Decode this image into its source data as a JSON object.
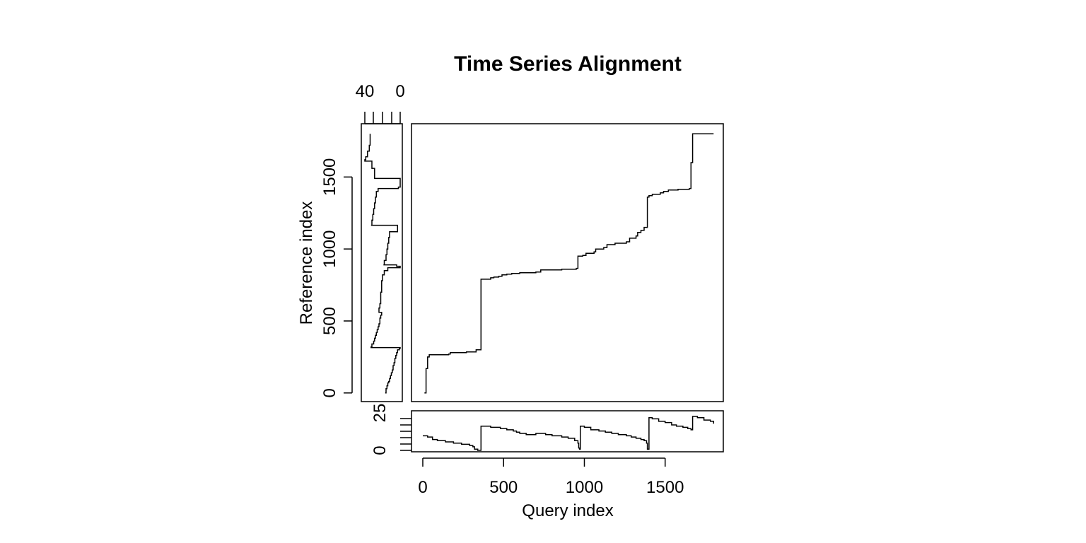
{
  "chart_data": {
    "type": "line",
    "title": "Time Series Alignment",
    "xlabel": "Query index",
    "ylabel": "Reference index",
    "xlim": [
      -70,
      1860
    ],
    "ylim": [
      -60,
      1870
    ],
    "xticks": [
      0,
      500,
      1000,
      1500
    ],
    "xtick_labels": [
      "0",
      "500",
      "1000",
      "1500"
    ],
    "yticks": [
      0,
      500,
      1000,
      1500
    ],
    "ytick_labels": [
      "0",
      "500",
      "1000",
      "1500"
    ],
    "grid": false,
    "series": [
      {
        "points": [
          [
            10,
            0
          ],
          [
            20,
            10
          ],
          [
            20,
            170
          ],
          [
            30,
            180
          ],
          [
            30,
            250
          ],
          [
            40,
            265
          ],
          [
            100,
            265
          ],
          [
            160,
            270
          ],
          [
            170,
            280
          ],
          [
            230,
            280
          ],
          [
            270,
            285
          ],
          [
            330,
            300
          ],
          [
            360,
            310
          ],
          [
            360,
            790
          ],
          [
            390,
            790
          ],
          [
            420,
            800
          ],
          [
            440,
            805
          ],
          [
            470,
            810
          ],
          [
            490,
            820
          ],
          [
            520,
            825
          ],
          [
            550,
            830
          ],
          [
            600,
            835
          ],
          [
            700,
            840
          ],
          [
            730,
            855
          ],
          [
            800,
            855
          ],
          [
            860,
            860
          ],
          [
            950,
            865
          ],
          [
            960,
            870
          ],
          [
            960,
            950
          ],
          [
            990,
            955
          ],
          [
            1010,
            970
          ],
          [
            1060,
            980
          ],
          [
            1070,
            1000
          ],
          [
            1120,
            1010
          ],
          [
            1140,
            1030
          ],
          [
            1190,
            1040
          ],
          [
            1260,
            1050
          ],
          [
            1280,
            1075
          ],
          [
            1320,
            1090
          ],
          [
            1330,
            1115
          ],
          [
            1350,
            1130
          ],
          [
            1370,
            1150
          ],
          [
            1390,
            1160
          ],
          [
            1390,
            1360
          ],
          [
            1400,
            1370
          ],
          [
            1420,
            1380
          ],
          [
            1470,
            1390
          ],
          [
            1490,
            1400
          ],
          [
            1520,
            1410
          ],
          [
            1580,
            1415
          ],
          [
            1650,
            1420
          ],
          [
            1660,
            1430
          ],
          [
            1660,
            1600
          ],
          [
            1670,
            1610
          ],
          [
            1670,
            1800
          ],
          [
            1800,
            1800
          ]
        ]
      }
    ],
    "query_panel": {
      "ylim": [
        0,
        28
      ],
      "ytick_labels": [
        "0",
        "25"
      ],
      "values": [
        [
          0,
          12
        ],
        [
          30,
          11
        ],
        [
          60,
          9
        ],
        [
          90,
          8
        ],
        [
          140,
          7
        ],
        [
          190,
          6
        ],
        [
          240,
          5
        ],
        [
          290,
          4
        ],
        [
          310,
          3
        ],
        [
          320,
          1
        ],
        [
          340,
          0
        ],
        [
          355,
          0
        ],
        [
          360,
          0
        ],
        [
          360,
          20
        ],
        [
          380,
          20
        ],
        [
          420,
          19
        ],
        [
          480,
          18
        ],
        [
          520,
          17
        ],
        [
          560,
          16
        ],
        [
          580,
          15
        ],
        [
          600,
          14
        ],
        [
          640,
          13
        ],
        [
          700,
          14
        ],
        [
          760,
          13
        ],
        [
          800,
          12
        ],
        [
          860,
          11
        ],
        [
          900,
          10
        ],
        [
          940,
          8
        ],
        [
          960,
          6
        ],
        [
          965,
          2
        ],
        [
          970,
          1
        ],
        [
          975,
          20
        ],
        [
          1000,
          19
        ],
        [
          1040,
          17
        ],
        [
          1090,
          16
        ],
        [
          1130,
          15
        ],
        [
          1170,
          14
        ],
        [
          1210,
          13
        ],
        [
          1260,
          12
        ],
        [
          1290,
          11
        ],
        [
          1320,
          10
        ],
        [
          1350,
          9
        ],
        [
          1370,
          8
        ],
        [
          1385,
          6
        ],
        [
          1390,
          1
        ],
        [
          1400,
          2
        ],
        [
          1400,
          27
        ],
        [
          1420,
          26
        ],
        [
          1460,
          24
        ],
        [
          1500,
          23
        ],
        [
          1540,
          21
        ],
        [
          1570,
          20
        ],
        [
          1610,
          19
        ],
        [
          1640,
          18
        ],
        [
          1660,
          17
        ],
        [
          1670,
          28
        ],
        [
          1700,
          27
        ],
        [
          1740,
          25
        ],
        [
          1780,
          24
        ],
        [
          1800,
          22
        ]
      ]
    },
    "reference_panel": {
      "xtick_labels": [
        "40",
        "0"
      ],
      "values": [
        [
          0,
          17
        ],
        [
          15,
          16
        ],
        [
          30,
          16
        ],
        [
          45,
          15
        ],
        [
          50,
          15
        ],
        [
          60,
          14
        ],
        [
          70,
          14
        ],
        [
          80,
          13
        ],
        [
          100,
          12
        ],
        [
          120,
          11
        ],
        [
          140,
          10
        ],
        [
          160,
          9
        ],
        [
          190,
          8
        ],
        [
          210,
          7
        ],
        [
          240,
          6
        ],
        [
          260,
          5
        ],
        [
          280,
          4
        ],
        [
          300,
          3
        ],
        [
          310,
          1
        ],
        [
          315,
          0
        ],
        [
          320,
          33
        ],
        [
          340,
          32
        ],
        [
          360,
          30
        ],
        [
          380,
          29
        ],
        [
          400,
          28
        ],
        [
          420,
          27
        ],
        [
          440,
          26
        ],
        [
          460,
          25
        ],
        [
          480,
          24
        ],
        [
          500,
          23
        ],
        [
          520,
          23
        ],
        [
          540,
          22
        ],
        [
          560,
          21
        ],
        [
          570,
          24
        ],
        [
          590,
          24
        ],
        [
          600,
          23
        ],
        [
          620,
          23
        ],
        [
          660,
          22
        ],
        [
          700,
          22
        ],
        [
          740,
          21
        ],
        [
          780,
          21
        ],
        [
          820,
          20
        ],
        [
          850,
          18
        ],
        [
          870,
          14
        ],
        [
          880,
          0
        ],
        [
          890,
          4
        ],
        [
          890,
          19
        ],
        [
          920,
          18
        ],
        [
          960,
          16
        ],
        [
          1000,
          15
        ],
        [
          1040,
          14
        ],
        [
          1080,
          13
        ],
        [
          1120,
          12
        ],
        [
          1160,
          3
        ],
        [
          1165,
          3
        ],
        [
          1165,
          33
        ],
        [
          1200,
          32
        ],
        [
          1240,
          31
        ],
        [
          1280,
          30
        ],
        [
          1320,
          29
        ],
        [
          1360,
          28
        ],
        [
          1400,
          27
        ],
        [
          1420,
          25
        ],
        [
          1430,
          2
        ],
        [
          1440,
          0
        ],
        [
          1480,
          0
        ],
        [
          1490,
          0
        ],
        [
          1490,
          28
        ],
        [
          1520,
          29
        ],
        [
          1560,
          29
        ],
        [
          1600,
          32
        ],
        [
          1610,
          32
        ],
        [
          1610,
          40
        ],
        [
          1620,
          40
        ],
        [
          1640,
          39
        ],
        [
          1680,
          37
        ],
        [
          1720,
          35
        ],
        [
          1760,
          34
        ],
        [
          1800,
          34
        ]
      ]
    }
  }
}
